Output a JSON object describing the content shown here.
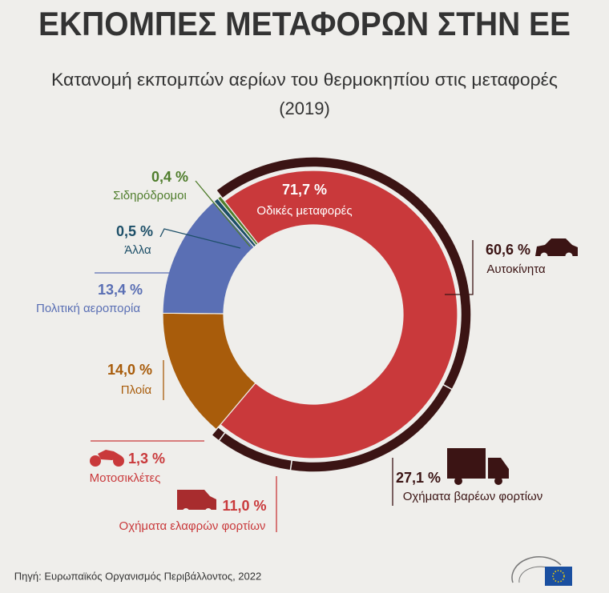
{
  "chart_data": {
    "type": "donut",
    "title": "ΕΚΠΟΜΠΕΣ ΜΕΤΑΦΟΡΩΝ ΣΤΗΝ ΕΕ",
    "subtitle": [
      "Κατανομή εκπομπών αερίων του θερμοκηπίου στις μεταφορές",
      "(2019)"
    ],
    "categories": [
      "Οδικές μεταφορές",
      "Πλοία",
      "Πολιτική αεροπορία",
      "Άλλα",
      "Σιδηρόδρομοι"
    ],
    "values": [
      71.7,
      14.0,
      13.4,
      0.5,
      0.4
    ],
    "value_labels": [
      "71,7 %",
      "14,0 %",
      "13,4 %",
      "0,5 %",
      "0,4 %"
    ],
    "colors": [
      "#c9393b",
      "#a85c0b",
      "#5a6fb4",
      "#1d4f68",
      "#4f7d2c"
    ],
    "road_breakdown": {
      "categories": [
        "Αυτοκίνητα",
        "Οχήματα βαρέων φορτίων",
        "Οχήματα ελαφρών φορτίων",
        "Μοτοσικλέτες"
      ],
      "values": [
        60.6,
        27.1,
        11.0,
        1.3
      ],
      "value_labels": [
        "60,6 %",
        "27,1 %",
        "11,0 %",
        "1,3 %"
      ],
      "color": "#3b1414"
    },
    "source": "Πηγή: Ευρωπαϊκός Οργανισμός Περιβάλλοντος, 2022"
  }
}
